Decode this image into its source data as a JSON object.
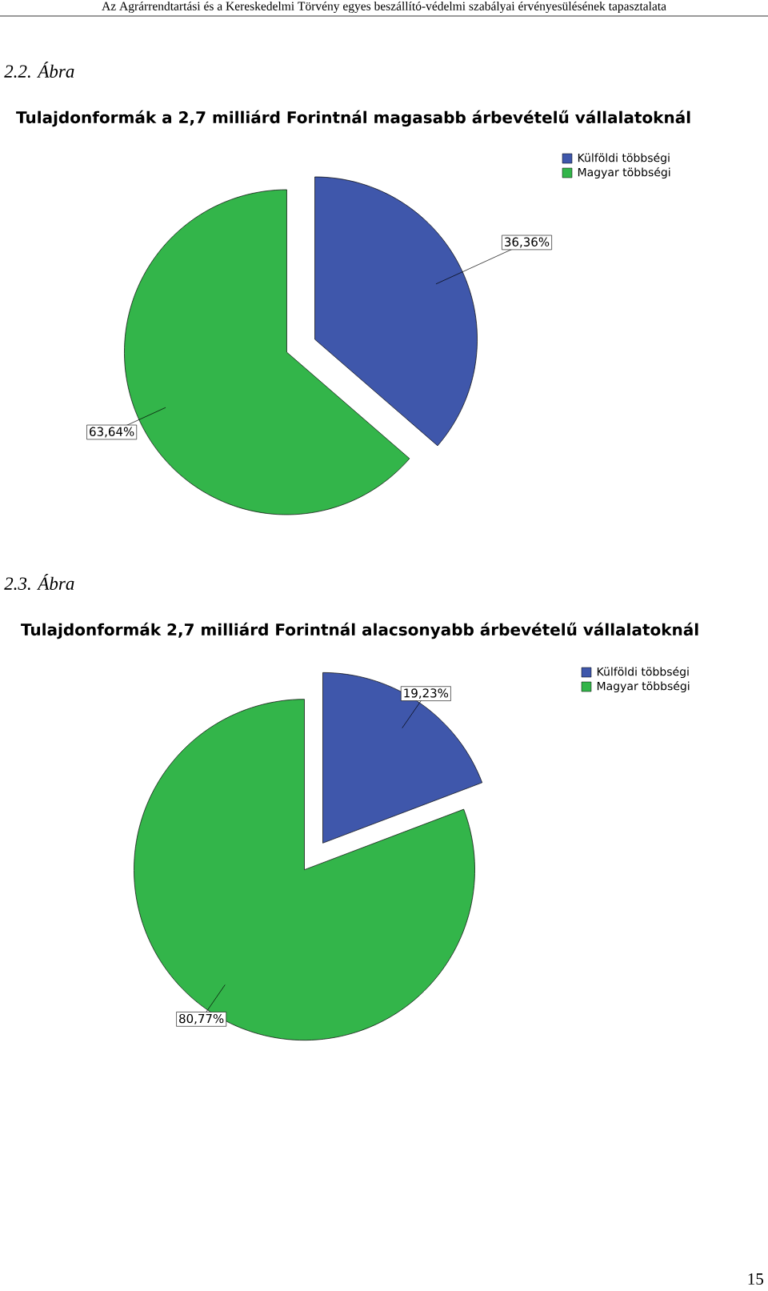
{
  "chart_data": [
    {
      "type": "pie",
      "title": "Tulajdonformák a 2,7 milliárd Forintnál magasabb árbevételű vállalatoknál",
      "categories": [
        "Külföldi többségi",
        "Magyar többségi"
      ],
      "values": [
        36.36,
        63.64
      ],
      "colors": [
        "#3f57ab",
        "#33b54a"
      ],
      "value_labels": [
        "36,36%",
        "63,64%"
      ],
      "legend": "top right",
      "annotations": [
        "Az Agrárrendtartási és a Kereskedelmi Törvény egyes beszállító-védelmi szabályai érvényesülésének tapasztalata",
        "2.2. Ábra"
      ]
    },
    {
      "type": "pie",
      "title": "Tulajdonformák 2,7 milliárd Forintnál alacsonyabb árbevételű vállalatoknál",
      "categories": [
        "Külföldi többségi",
        "Magyar többségi"
      ],
      "values": [
        19.23,
        80.77
      ],
      "colors": [
        "#3f57ab",
        "#33b54a"
      ],
      "value_labels": [
        "19,23%",
        "80,77%"
      ],
      "legend": "top right",
      "annotations": [
        "2.3. Ábra",
        "15"
      ]
    }
  ]
}
